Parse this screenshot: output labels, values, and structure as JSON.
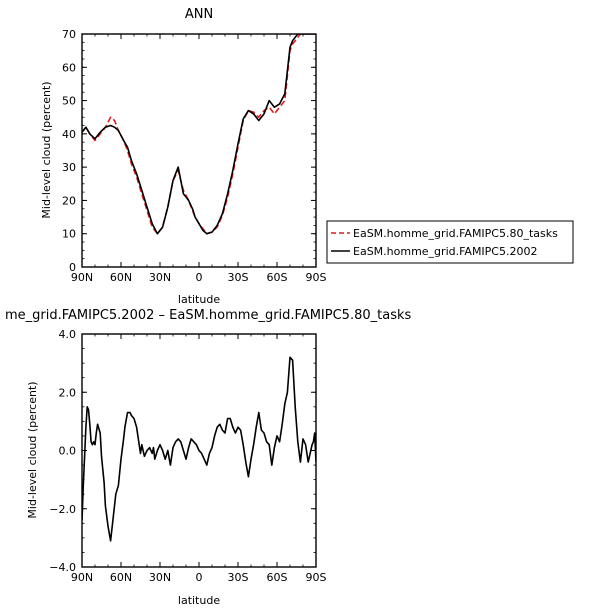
{
  "title": "ANN",
  "legend_entries": [
    "EaSM.homme_grid.FAMIPC5.80_tasks",
    "EaSM.homme_grid.FAMIPC5.2002"
  ],
  "colors": {
    "series_tasks": "#e41a1c",
    "series_2002": "#000000"
  },
  "chart_data": [
    {
      "type": "line",
      "title": "ANN",
      "xlabel": "latitude",
      "ylabel": "Mid-level cloud (percent)",
      "x_ticks": [
        "90N",
        "60N",
        "30N",
        "0",
        "30S",
        "60S",
        "90S"
      ],
      "y_ticks": [
        "0",
        "10",
        "20",
        "30",
        "40",
        "50",
        "60",
        "70"
      ],
      "xlim": [
        90,
        -90
      ],
      "ylim": [
        0,
        70
      ],
      "x_units": "latitude in degrees (N positive, S negative)",
      "legend_position": "right",
      "series": [
        {
          "name": "EaSM.homme_grid.FAMIPC5.80_tasks",
          "color": "#e41a1c",
          "dash": true,
          "x": [
            90,
            87,
            84,
            80,
            76,
            72,
            68,
            65,
            62,
            58,
            55,
            52,
            48,
            44,
            40,
            36,
            32,
            28,
            24,
            20,
            16,
            12,
            8,
            5,
            3,
            0,
            -3,
            -6,
            -10,
            -14,
            -18,
            -22,
            -26,
            -30,
            -34,
            -38,
            -42,
            -46,
            -50,
            -54,
            -58,
            -62,
            -66,
            -70,
            -72,
            -74,
            -76,
            -78,
            -80,
            -82,
            -84,
            -86,
            -88,
            -90
          ],
          "y": [
            40.5,
            42,
            40,
            38,
            40,
            42,
            45,
            44,
            41,
            38,
            35,
            31,
            27,
            22,
            17,
            12,
            10,
            12,
            18,
            26,
            29,
            23,
            20,
            17,
            15,
            13,
            11.5,
            10,
            10.5,
            12,
            15.5,
            21,
            28,
            36,
            44,
            47,
            46.5,
            45,
            47,
            48,
            46,
            48,
            50,
            65,
            67,
            68,
            69,
            70,
            70,
            70,
            70,
            70,
            70,
            70
          ]
        },
        {
          "name": "EaSM.homme_grid.FAMIPC5.2002",
          "color": "#000000",
          "dash": false,
          "x": [
            90,
            87,
            84,
            80,
            76,
            72,
            68,
            65,
            62,
            58,
            55,
            52,
            48,
            44,
            40,
            36,
            32,
            28,
            24,
            20,
            16,
            12,
            8,
            5,
            3,
            0,
            -3,
            -6,
            -10,
            -14,
            -18,
            -22,
            -26,
            -30,
            -34,
            -38,
            -42,
            -46,
            -50,
            -54,
            -58,
            -62,
            -66,
            -70,
            -72,
            -74,
            -76,
            -78,
            -80,
            -82,
            -84,
            -86,
            -88,
            -90
          ],
          "y": [
            40.5,
            42,
            40,
            38.5,
            40.5,
            42,
            42.5,
            42,
            41,
            38,
            36,
            32,
            28,
            23,
            18,
            13,
            10,
            12,
            18,
            26,
            30,
            22,
            20,
            17.5,
            15,
            13,
            11,
            10,
            10.5,
            12.5,
            16,
            22,
            29,
            37,
            44.5,
            47,
            46,
            44,
            46,
            50,
            48,
            49,
            52,
            66,
            68,
            69,
            70,
            70,
            70,
            70,
            70,
            70,
            70,
            70
          ]
        }
      ]
    },
    {
      "type": "line",
      "title": "me_grid.FAMIPC5.2002 – EaSM.homme_grid.FAMIPC5.80_tasks",
      "xlabel": "latitude",
      "ylabel": "Mid-level cloud (percent)",
      "x_ticks": [
        "90N",
        "60N",
        "30N",
        "0",
        "30S",
        "60S",
        "90S"
      ],
      "y_ticks": [
        "−4.0",
        "−2.0",
        "0.0",
        "2.0",
        "4.0"
      ],
      "xlim": [
        90,
        -90
      ],
      "ylim": [
        -4,
        4
      ],
      "series": [
        {
          "name": "",
          "color": "#000000",
          "dash": false,
          "x": [
            90,
            89,
            87,
            86,
            85,
            84,
            83,
            82,
            81,
            80,
            79,
            78,
            76,
            75,
            73,
            72,
            70,
            68,
            66,
            64,
            62,
            60,
            58,
            57,
            55,
            53,
            52,
            50,
            48,
            46,
            45,
            44,
            42,
            40,
            38,
            36,
            35,
            34,
            32,
            30,
            28,
            26,
            24,
            22,
            20,
            18,
            16,
            14,
            12,
            10,
            8,
            6,
            4,
            2,
            0,
            -2,
            -4,
            -6,
            -8,
            -10,
            -12,
            -14,
            -16,
            -18,
            -20,
            -22,
            -24,
            -26,
            -28,
            -30,
            -32,
            -34,
            -36,
            -38,
            -40,
            -42,
            -44,
            -46,
            -48,
            -50,
            -52,
            -54,
            -56,
            -58,
            -60,
            -62,
            -64,
            -66,
            -68,
            -70,
            -72,
            -74,
            -76,
            -78,
            -80,
            -82,
            -84,
            -86,
            -87,
            -88,
            -89,
            -90
          ],
          "y": [
            -2.4,
            -1.2,
            0.8,
            1.5,
            1.4,
            0.9,
            0.3,
            0.2,
            0.3,
            0.2,
            0.6,
            0.9,
            0.6,
            -0.2,
            -1.1,
            -1.9,
            -2.6,
            -3.1,
            -2.3,
            -1.5,
            -1.2,
            -0.3,
            0.4,
            0.8,
            1.3,
            1.3,
            1.2,
            1.1,
            0.8,
            0.2,
            -0.1,
            0.2,
            -0.2,
            0.0,
            0.1,
            -0.1,
            0.1,
            -0.3,
            0.0,
            0.2,
            0.0,
            -0.3,
            0.0,
            -0.5,
            0.1,
            0.3,
            0.4,
            0.3,
            0.0,
            -0.3,
            0.1,
            0.4,
            0.3,
            0.2,
            0.0,
            -0.1,
            -0.3,
            -0.5,
            -0.1,
            0.1,
            0.5,
            0.8,
            0.9,
            0.7,
            0.6,
            1.1,
            1.1,
            0.8,
            0.6,
            0.8,
            0.7,
            0.2,
            -0.4,
            -0.9,
            -0.3,
            0.2,
            0.8,
            1.3,
            0.7,
            0.6,
            0.3,
            0.2,
            -0.5,
            0.1,
            0.5,
            0.3,
            0.9,
            1.6,
            2.0,
            3.2,
            3.1,
            1.5,
            0.3,
            -0.4,
            0.4,
            0.2,
            -0.4,
            0.0,
            0.2,
            0.3,
            0.6,
            -0.4
          ]
        }
      ]
    }
  ]
}
